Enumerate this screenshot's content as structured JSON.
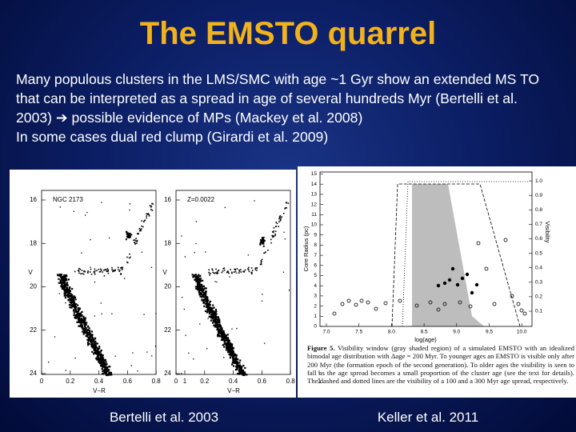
{
  "title": "The EMSTO quarrel",
  "body": [
    "Many populous clusters in the LMS/SMC with age ~1 Gyr show an extended MS TO that can be interpreted as a spread in age of several hundreds Myr (Bertelli et al. 2003) ➔ possible evidence of MPs (Mackey et al. 2008)",
    "In some cases dual red clump (Girardi et al. 2009)"
  ],
  "figures": [
    {
      "panel_labels": [
        "NGC 2173",
        "Z=0.0022"
      ],
      "yticks": [
        "16",
        "18",
        "20",
        "22",
        "24"
      ],
      "xticks": [
        "0",
        "0.2",
        "0.4",
        "0.6",
        "0.8",
        "1"
      ],
      "xlabel": "V−R",
      "ylabel": "V"
    },
    {
      "yticks": [
        "0",
        "1",
        "2",
        "3",
        "4",
        "5",
        "6",
        "7",
        "8",
        "9",
        "10",
        "11",
        "12",
        "13",
        "14",
        "15"
      ],
      "y2ticks": [
        "0.1",
        "0.2",
        "0.3",
        "0.4",
        "0.5",
        "0.6",
        "0.7",
        "0.8",
        "0.9",
        "1.0"
      ],
      "xticks": [
        "7.0",
        "7.5",
        "8.0",
        "8.5",
        "9.0",
        "9.5",
        "10.0"
      ],
      "ylabel": "Core Radius (pc)",
      "y2label": "Visibility",
      "xlabel": "log(age)",
      "caption_label": "Figure 5.",
      "caption": "Visibility window (gray shaded region) of a simulated EMSTO with an idealized bimodal age distribution with Δage = 200 Myr. To younger ages an EMSTO is visible only after 200 Myr (the formation epoch of the second generation). To older ages the visibility is seen to fall as the age spread becomes a small proportion of the cluster age (see the text for details). The dashed and dotted lines are the visibility of a 100 and a 300 Myr age spread, respectively."
    }
  ],
  "captions": [
    "Bertelli et al. 2003",
    "Keller et al. 2011"
  ]
}
